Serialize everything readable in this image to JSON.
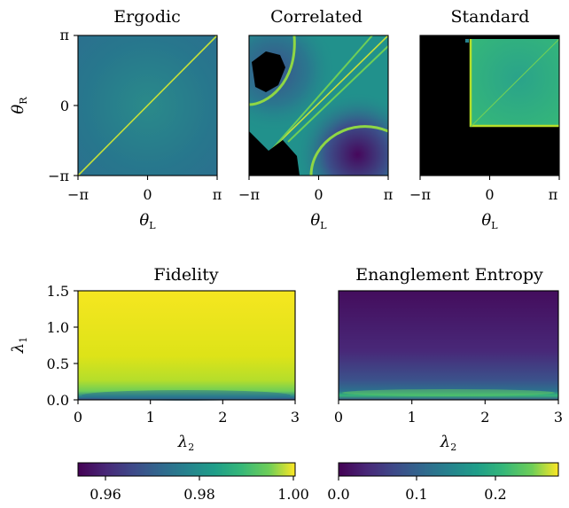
{
  "chart_data": [
    {
      "type": "heatmap",
      "id": "ergodic",
      "title": "Ergodic",
      "xlabel": "θ",
      "xlabel_sub": "L",
      "ylabel": "θ",
      "ylabel_sub": "R",
      "xlim": [
        -3.1416,
        3.1416
      ],
      "ylim": [
        -3.1416,
        3.1416
      ],
      "xticks": [
        -3.1416,
        0,
        3.1416
      ],
      "xtick_labels": [
        "−π",
        "0",
        "π"
      ],
      "yticks": [
        -3.1416,
        0,
        3.1416
      ],
      "ytick_labels": [
        "−π",
        "0",
        "π"
      ],
      "colormap": "viridis",
      "description_values": {
        "background": 0.45,
        "diagonal": 0.9
      }
    },
    {
      "type": "heatmap",
      "id": "correlated",
      "title": "Correlated",
      "xlabel": "θ",
      "xlabel_sub": "L",
      "xlim": [
        -3.1416,
        3.1416
      ],
      "ylim": [
        -3.1416,
        3.1416
      ],
      "xticks": [
        -3.1416,
        0,
        3.1416
      ],
      "xtick_labels": [
        "−π",
        "0",
        "π"
      ],
      "colormap": "viridis"
    },
    {
      "type": "heatmap",
      "id": "standard",
      "title": "Standard",
      "xlabel": "θ",
      "xlabel_sub": "L",
      "xlim": [
        -3.1416,
        3.1416
      ],
      "ylim": [
        -3.1416,
        3.1416
      ],
      "xticks": [
        -3.1416,
        0,
        3.1416
      ],
      "xtick_labels": [
        "−π",
        "0",
        "π"
      ],
      "colormap": "viridis"
    },
    {
      "type": "heatmap",
      "id": "fidelity",
      "title": "Fidelity",
      "xlabel": "λ",
      "xlabel_sub": "2",
      "ylabel": "λ",
      "ylabel_sub": "1",
      "xlim": [
        0,
        3
      ],
      "ylim": [
        0,
        1.5
      ],
      "xticks": [
        0,
        1,
        2,
        3
      ],
      "xtick_labels": [
        "0",
        "1",
        "2",
        "3"
      ],
      "yticks": [
        0,
        0.5,
        1.0,
        1.5
      ],
      "ytick_labels": [
        "0.0",
        "0.5",
        "1.0",
        "1.5"
      ],
      "colormap": "viridis",
      "colorbar": {
        "range": [
          0.955,
          1.0
        ],
        "ticks": [
          0.96,
          0.98,
          1.0
        ],
        "tick_labels": [
          "0.96",
          "0.98",
          "1.00"
        ]
      }
    },
    {
      "type": "heatmap",
      "id": "entropy",
      "title": "Enanglement Entropy",
      "xlabel": "λ",
      "xlabel_sub": "2",
      "xlim": [
        0,
        3
      ],
      "ylim": [
        0,
        1.5
      ],
      "xticks": [
        0,
        1,
        2,
        3
      ],
      "xtick_labels": [
        "0",
        "1",
        "2",
        "3"
      ],
      "colormap": "viridis",
      "colorbar": {
        "range": [
          0.0,
          0.28
        ],
        "ticks": [
          0.0,
          0.1,
          0.2
        ],
        "tick_labels": [
          "0.0",
          "0.1",
          "0.2"
        ]
      }
    }
  ]
}
